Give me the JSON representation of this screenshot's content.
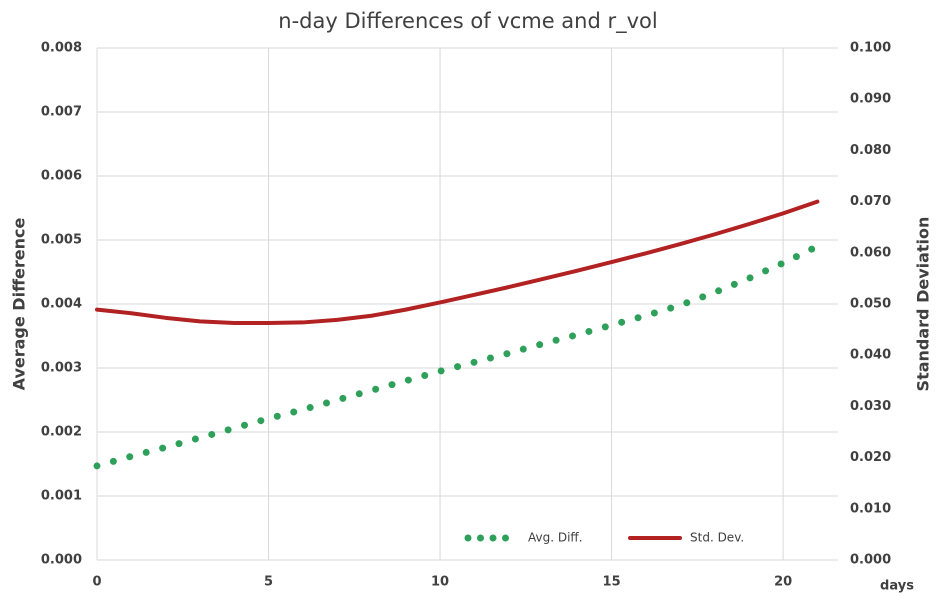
{
  "chart_data": {
    "type": "line",
    "title": "n-day Differences of vcme and r_vol",
    "x_label": "days",
    "y_label": "Average Difference",
    "y2_label": "Standard Deviation",
    "x": [
      0,
      1,
      2,
      3,
      4,
      5,
      6,
      7,
      8,
      9,
      10,
      11,
      12,
      13,
      14,
      15,
      16,
      17,
      18,
      19,
      20,
      21
    ],
    "series": [
      {
        "name": "Avg. Diff.",
        "color": "#2ea05a",
        "style": "dotted",
        "axis": "y",
        "values": [
          0.00147,
          0.00162,
          0.00176,
          0.00191,
          0.00206,
          0.00221,
          0.00235,
          0.0025,
          0.00265,
          0.0028,
          0.00295,
          0.00309,
          0.00323,
          0.00338,
          0.00352,
          0.00367,
          0.00382,
          0.00398,
          0.00418,
          0.0044,
          0.00464,
          0.0049
        ]
      },
      {
        "name": "Std. Dev.",
        "color": "#b22222",
        "style": "solid",
        "axis": "y2",
        "values": [
          0.0489,
          0.0482,
          0.0473,
          0.0466,
          0.0463,
          0.0463,
          0.0464,
          0.0469,
          0.0477,
          0.0489,
          0.0503,
          0.0518,
          0.0533,
          0.0549,
          0.0565,
          0.0582,
          0.0599,
          0.0617,
          0.0636,
          0.0656,
          0.0677,
          0.07
        ]
      }
    ],
    "xlim": [
      0,
      21.6
    ],
    "xticks": [
      0,
      5,
      10,
      15,
      20
    ],
    "ylim": [
      0,
      0.008
    ],
    "yticks": [
      {
        "value": 0,
        "label": "0.000"
      },
      {
        "value": 0.001,
        "label": "0.001"
      },
      {
        "value": 0.002,
        "label": "0.002"
      },
      {
        "value": 0.003,
        "label": "0.003"
      },
      {
        "value": 0.004,
        "label": "0.004"
      },
      {
        "value": 0.005,
        "label": "0.005"
      },
      {
        "value": 0.006,
        "label": "0.006"
      },
      {
        "value": 0.007,
        "label": "0.007"
      },
      {
        "value": 0.008,
        "label": "0.008"
      }
    ],
    "y2lim": [
      0,
      0.1
    ],
    "y2ticks": [
      {
        "value": 0,
        "label": "0.000"
      },
      {
        "value": 0.01,
        "label": "0.010"
      },
      {
        "value": 0.02,
        "label": "0.020"
      },
      {
        "value": 0.03,
        "label": "0.030"
      },
      {
        "value": 0.04,
        "label": "0.040"
      },
      {
        "value": 0.05,
        "label": "0.050"
      },
      {
        "value": 0.06,
        "label": "0.060"
      },
      {
        "value": 0.07,
        "label": "0.070"
      },
      {
        "value": 0.08,
        "label": "0.080"
      },
      {
        "value": 0.09,
        "label": "0.090"
      },
      {
        "value": 0.1,
        "label": "0.100"
      }
    ],
    "grid": true,
    "legend": "bottom-right"
  }
}
